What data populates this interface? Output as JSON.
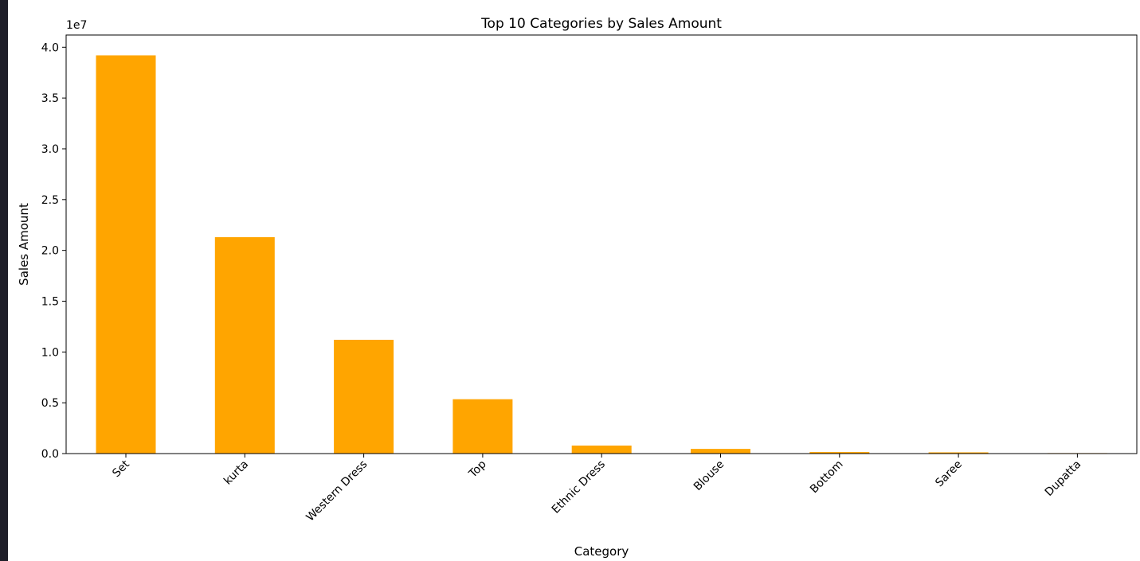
{
  "chart_data": {
    "type": "bar",
    "title": "Top 10 Categories by Sales Amount",
    "xlabel": "Category",
    "ylabel": "Sales Amount",
    "offset_label": "1e7",
    "categories": [
      "Set",
      "kurta",
      "Western Dress",
      "Top",
      "Ethnic Dress",
      "Blouse",
      "Bottom",
      "Saree",
      "Dupatta"
    ],
    "values": [
      39200000,
      21300000,
      11200000,
      5350000,
      790000,
      460000,
      150000,
      120000,
      900
    ],
    "ylim": [
      0,
      41200000
    ],
    "yticks": [
      0,
      5000000,
      10000000,
      15000000,
      20000000,
      25000000,
      30000000,
      35000000,
      40000000
    ],
    "ytick_labels": [
      "0.0",
      "0.5",
      "1.0",
      "1.5",
      "2.0",
      "2.5",
      "3.0",
      "3.5",
      "4.0"
    ],
    "bar_color": "#ffa500",
    "grid": false,
    "legend": false
  },
  "theme": {
    "frame_background": "#1f1f29",
    "figure_background": "#ffffff",
    "text_color": "#000000"
  }
}
